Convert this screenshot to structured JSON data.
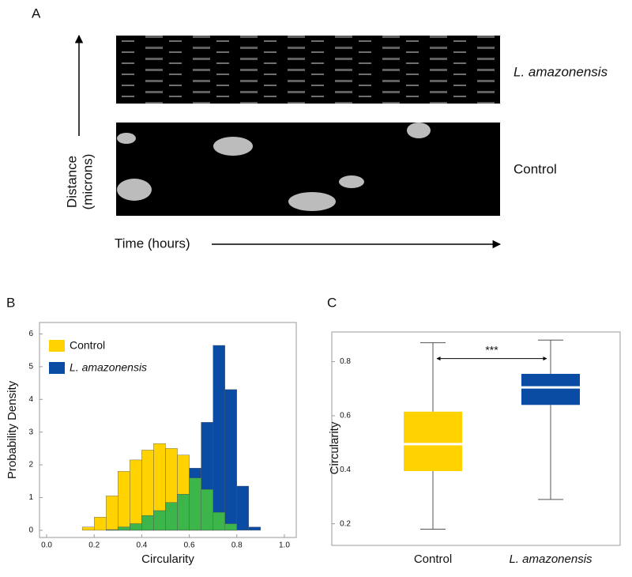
{
  "panel_a": {
    "label": "A",
    "y_label_lines": [
      "Distance",
      "(microns)"
    ],
    "x_label": "Time (hours)",
    "rows": [
      "L. amazonensis",
      "Control"
    ]
  },
  "chart_data": [
    {
      "type": "histogram",
      "panel_label": "B",
      "xlabel": "Circularity",
      "ylabel": "Probability Density",
      "bins": [
        0.15,
        0.2,
        0.25,
        0.3,
        0.35,
        0.4,
        0.45,
        0.5,
        0.55,
        0.6,
        0.65,
        0.7,
        0.75,
        0.8,
        0.85,
        0.9
      ],
      "series": [
        {
          "name": "Control",
          "color": "#ffd200",
          "values": [
            0.1,
            0.4,
            1.05,
            1.8,
            2.15,
            2.45,
            2.65,
            2.5,
            2.3,
            1.6,
            1.25,
            0.55,
            0.2,
            0,
            0
          ]
        },
        {
          "name": "L. amazonensis",
          "color": "#0a4ca3",
          "values": [
            0,
            0,
            0.02,
            0.1,
            0.2,
            0.45,
            0.6,
            0.85,
            1.1,
            1.9,
            3.3,
            5.65,
            4.3,
            1.35,
            0.1
          ]
        }
      ],
      "overlap_color": "#3cb54a",
      "xlim": [
        -0.03,
        1.05
      ],
      "xticks": [
        {
          "value": 0,
          "label": "0.0"
        },
        0.2,
        0.4,
        0.6,
        0.8,
        {
          "value": 1,
          "label": "1.0"
        }
      ],
      "ylim": [
        -0.22,
        6.35
      ],
      "yticks": [
        0,
        1,
        2,
        3,
        4,
        5,
        6
      ],
      "legend": "top-left"
    },
    {
      "type": "box",
      "panel_label": "C",
      "ylabel": "Circularity",
      "categories": [
        "Control",
        "L. amazonensis"
      ],
      "boxes": [
        {
          "low": 0.18,
          "q1": 0.395,
          "median": 0.495,
          "q3": 0.615,
          "high": 0.87
        },
        {
          "low": 0.29,
          "q1": 0.64,
          "median": 0.705,
          "q3": 0.755,
          "high": 0.88
        }
      ],
      "colors": [
        "#ffd200",
        "#0a4ca3"
      ],
      "median_color": "#ffffff",
      "ylim": [
        0.12,
        0.91
      ],
      "yticks": [
        0.2,
        0.4,
        0.6,
        0.8
      ],
      "annotation": "***"
    }
  ]
}
